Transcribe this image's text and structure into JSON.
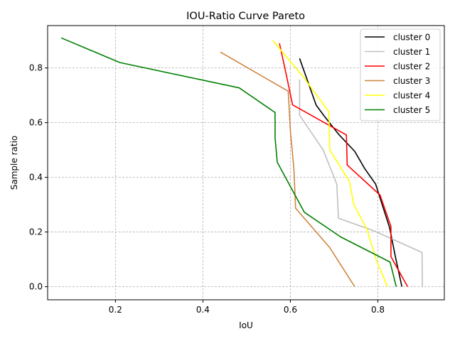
{
  "chart_data": {
    "type": "line",
    "title": "IOU-Ratio Curve Pareto",
    "xlabel": "IoU",
    "ylabel": "Sample ratio",
    "xlim": [
      0.045,
      0.952
    ],
    "ylim": [
      -0.048,
      0.955
    ],
    "xticks": [
      0.2,
      0.4,
      0.6,
      0.8
    ],
    "xtick_labels": [
      "0.2",
      "0.4",
      "0.6",
      "0.8"
    ],
    "yticks": [
      0.0,
      0.2,
      0.4,
      0.6,
      0.8
    ],
    "ytick_labels": [
      "0.0",
      "0.2",
      "0.4",
      "0.6",
      "0.8"
    ],
    "grid": true,
    "legend_position": "top-right",
    "series": [
      {
        "name": "cluster 0",
        "color": "#000000",
        "x": [
          0.621,
          0.659,
          0.677,
          0.71,
          0.747,
          0.77,
          0.795,
          0.81,
          0.827,
          0.84,
          0.855
        ],
        "y": [
          0.835,
          0.664,
          0.625,
          0.558,
          0.495,
          0.432,
          0.375,
          0.3,
          0.215,
          0.11,
          0.0
        ]
      },
      {
        "name": "cluster 1",
        "color": "#bfbfbf",
        "x": [
          0.621,
          0.621,
          0.675,
          0.706,
          0.71,
          0.79,
          0.901,
          0.902
        ],
        "y": [
          0.758,
          0.627,
          0.5,
          0.375,
          0.25,
          0.205,
          0.125,
          0.0
        ]
      },
      {
        "name": "cluster 2",
        "color": "#ff0000",
        "x": [
          0.575,
          0.59,
          0.605,
          0.728,
          0.73,
          0.805,
          0.83,
          0.83,
          0.868
        ],
        "y": [
          0.89,
          0.78,
          0.665,
          0.555,
          0.445,
          0.335,
          0.22,
          0.11,
          0.0
        ]
      },
      {
        "name": "cluster 3",
        "color": "#cd853f",
        "x": [
          0.44,
          0.595,
          0.6,
          0.608,
          0.612,
          0.69,
          0.747
        ],
        "y": [
          0.858,
          0.715,
          0.572,
          0.43,
          0.287,
          0.143,
          0.0
        ]
      },
      {
        "name": "cluster 4",
        "color": "#ffff00",
        "x": [
          0.56,
          0.628,
          0.688,
          0.69,
          0.735,
          0.745,
          0.775,
          0.797,
          0.822
        ],
        "y": [
          0.9,
          0.77,
          0.64,
          0.5,
          0.385,
          0.3,
          0.21,
          0.095,
          0.0
        ]
      },
      {
        "name": "cluster 5",
        "color": "#008000",
        "x": [
          0.076,
          0.21,
          0.483,
          0.565,
          0.565,
          0.57,
          0.632,
          0.715,
          0.828,
          0.842
        ],
        "y": [
          0.91,
          0.82,
          0.727,
          0.637,
          0.545,
          0.455,
          0.272,
          0.182,
          0.09,
          0.0
        ]
      }
    ]
  }
}
